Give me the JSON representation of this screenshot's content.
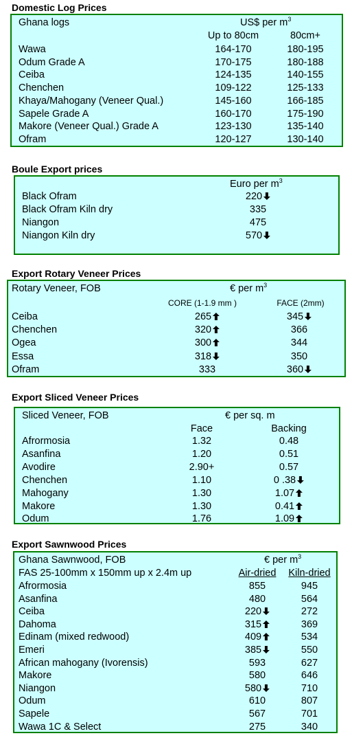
{
  "domestic": {
    "heading": "Domestic Log Prices",
    "label": "Ghana logs",
    "unit": "US$ per m",
    "unit_sup": "3",
    "col1": "Up to 80cm",
    "col2": "80cm+",
    "rows": [
      {
        "name": "Wawa",
        "v1": "164-170",
        "v2": "180-195"
      },
      {
        "name": "Odum Grade A",
        "v1": "170-175",
        "v2": "180-188"
      },
      {
        "name": "Ceiba",
        "v1": "124-135",
        "v2": "140-155"
      },
      {
        "name": "Chenchen",
        "v1": "109-122",
        "v2": "125-133"
      },
      {
        "name": "Khaya/Mahogany (Veneer Qual.)",
        "v1": "145-160",
        "v2": "166-185"
      },
      {
        "name": "Sapele Grade A",
        "v1": "160-170",
        "v2": "175-190"
      },
      {
        "name": "Makore (Veneer Qual.) Grade A",
        "v1": "123-130",
        "v2": "135-140"
      },
      {
        "name": "Ofram",
        "v1": "120-127",
        "v2": "130-140"
      }
    ]
  },
  "boule": {
    "heading": "Boule Export prices",
    "unit": "Euro per m",
    "unit_sup": "3",
    "rows": [
      {
        "name": "Black Ofram",
        "v": "220",
        "arrow": "down"
      },
      {
        "name": "Black Ofram  Kiln dry",
        "v": "335",
        "arrow": ""
      },
      {
        "name": "Niangon",
        "v": "475",
        "arrow": ""
      },
      {
        "name": "Niangon Kiln dry",
        "v": "570",
        "arrow": "down"
      }
    ]
  },
  "rotary": {
    "heading": "Export Rotary Veneer Prices",
    "label": "Rotary Veneer,  FOB",
    "unit": "€  per m",
    "unit_sup": "3",
    "col1": "CORE (1-1.9 mm )",
    "col2": "FACE (2mm)",
    "rows": [
      {
        "name": "Ceiba",
        "v1": "265",
        "a1": "up",
        "v2": "345",
        "a2": "down"
      },
      {
        "name": "Chenchen",
        "v1": "320",
        "a1": "up",
        "v2": "366",
        "a2": ""
      },
      {
        "name": "Ogea",
        "v1": "300",
        "a1": "up",
        "v2": "344",
        "a2": ""
      },
      {
        "name": "Essa",
        "v1": "318",
        "a1": "down",
        "v2": "350",
        "a2": ""
      },
      {
        "name": "Ofram",
        "v1": "333",
        "a1": "",
        "v2": "360",
        "a2": "down"
      }
    ]
  },
  "sliced": {
    "heading": "Export Sliced Veneer Prices",
    "label": "Sliced Veneer, FOB",
    "unit": "€ per sq. m",
    "col1": "Face",
    "col2": "Backing",
    "rows": [
      {
        "name": "Afrormosia",
        "v1": "1.32",
        "a1": "",
        "v2": "0.48",
        "a2": ""
      },
      {
        "name": "Asanfina",
        "v1": "1.20",
        "a1": "",
        "v2": "0.51",
        "a2": ""
      },
      {
        "name": "Avodire",
        "v1": "2.90+",
        "a1": "",
        "v2": "0.57",
        "a2": ""
      },
      {
        "name": "Chenchen",
        "v1": "1.10",
        "a1": "",
        "v2": "0 .38",
        "a2": "down"
      },
      {
        "name": "Mahogany",
        "v1": "1.30",
        "a1": "",
        "v2": "1.07",
        "a2": "up"
      },
      {
        "name": "Makore",
        "v1": "1.30",
        "a1": "",
        "v2": "0.41",
        "a2": "up"
      },
      {
        "name": "Odum",
        "v1": "1.76",
        "a1": "",
        "v2": "1.09",
        "a2": "up"
      }
    ]
  },
  "sawn": {
    "heading": "Export Sawnwood Prices",
    "label": "Ghana Sawnwood, FOB",
    "unit": "€ per m",
    "unit_sup": "3",
    "spec": "FAS 25-100mm x 150mm up x 2.4m up",
    "col1": "Air-dried",
    "col2": "Kiln-dried",
    "rows": [
      {
        "name": "Afrormosia",
        "v1": "855",
        "a1": "",
        "v2": "945"
      },
      {
        "name": "Asanfina",
        "v1": "480",
        "a1": "",
        "v2": "564"
      },
      {
        "name": "Ceiba",
        "v1": "220",
        "a1": "down",
        "v2": "272"
      },
      {
        "name": "Dahoma",
        "v1": "315",
        "a1": "up",
        "v2": "369"
      },
      {
        "name": "Edinam (mixed redwood)",
        "v1": "409",
        "a1": "up",
        "v2": "534"
      },
      {
        "name": "Emeri",
        "v1": "385",
        "a1": "down",
        "v2": "550"
      },
      {
        "name": "African mahogany (Ivorensis)",
        "v1": "593",
        "a1": "",
        "v2": "627"
      },
      {
        "name": "Makore",
        "v1": "580",
        "a1": "",
        "v2": "646"
      },
      {
        "name": "Niangon",
        "v1": "580",
        "a1": "down",
        "v2": "710"
      },
      {
        "name": "Odum",
        "v1": "610",
        "a1": "",
        "v2": "807"
      },
      {
        "name": "Sapele",
        "v1": "567",
        "a1": "",
        "v2": "701"
      },
      {
        "name": "Wawa 1C & Select",
        "v1": "275",
        "a1": "",
        "v2": "340"
      }
    ]
  },
  "icons": {
    "up": "arrow-up-icon",
    "down": "arrow-down-icon"
  },
  "colors": {
    "box_fill": "#ccffff",
    "box_border": "#008000"
  }
}
